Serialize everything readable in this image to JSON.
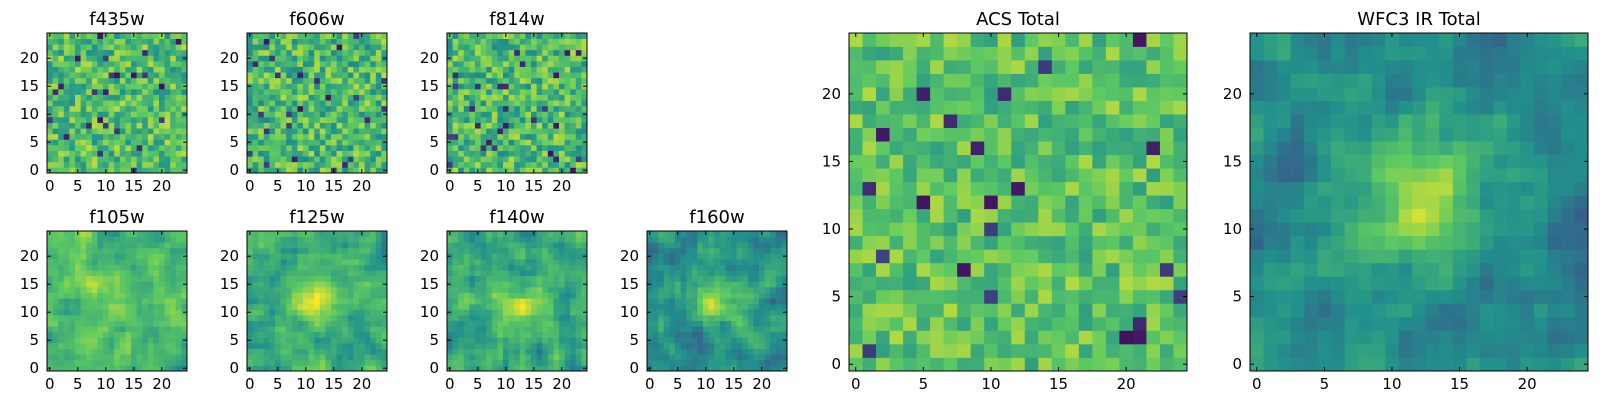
{
  "figure": {
    "colormap": "viridis",
    "colormap_stops": [
      "#440154",
      "#3b528b",
      "#21918c",
      "#5ec962",
      "#fde725"
    ],
    "frame_color": "#000000",
    "background": "#ffffff"
  },
  "chart_data": [
    {
      "id": "f435w",
      "type": "heatmap",
      "title": "f435w",
      "grid": [
        25,
        25
      ],
      "xlim": [
        -0.5,
        24.5
      ],
      "ylim": [
        -0.5,
        24.5
      ],
      "xticks": [
        "0",
        "5",
        "10",
        "15",
        "20"
      ],
      "yticks": [
        "0",
        "5",
        "10",
        "15",
        "20"
      ],
      "pattern": "noise",
      "mean": 0.7,
      "noise": 0.2,
      "seed": 11
    },
    {
      "id": "f606w",
      "type": "heatmap",
      "title": "f606w",
      "grid": [
        25,
        25
      ],
      "xlim": [
        -0.5,
        24.5
      ],
      "ylim": [
        -0.5,
        24.5
      ],
      "xticks": [
        "0",
        "5",
        "10",
        "15",
        "20"
      ],
      "yticks": [
        "0",
        "5",
        "10",
        "15",
        "20"
      ],
      "pattern": "noise",
      "mean": 0.68,
      "noise": 0.21,
      "seed": 23
    },
    {
      "id": "f814w",
      "type": "heatmap",
      "title": "f814w",
      "grid": [
        25,
        25
      ],
      "xlim": [
        -0.5,
        24.5
      ],
      "ylim": [
        -0.5,
        24.5
      ],
      "xticks": [
        "0",
        "5",
        "10",
        "15",
        "20"
      ],
      "yticks": [
        "0",
        "5",
        "10",
        "15",
        "20"
      ],
      "pattern": "noise",
      "mean": 0.68,
      "noise": 0.21,
      "seed": 37
    },
    {
      "id": "f105w",
      "type": "heatmap",
      "title": "f105w",
      "grid": [
        25,
        25
      ],
      "xlim": [
        -0.5,
        24.5
      ],
      "ylim": [
        -0.5,
        24.5
      ],
      "xticks": [
        "0",
        "5",
        "10",
        "15",
        "20"
      ],
      "yticks": [
        "0",
        "5",
        "10",
        "15",
        "20"
      ],
      "pattern": "smooth",
      "mean": 0.68,
      "noise": 0.13,
      "blob_center": [
        12,
        12
      ],
      "blob_strength": 0.12,
      "seed": 41
    },
    {
      "id": "f125w",
      "type": "heatmap",
      "title": "f125w",
      "grid": [
        25,
        25
      ],
      "xlim": [
        -0.5,
        24.5
      ],
      "ylim": [
        -0.5,
        24.5
      ],
      "xticks": [
        "0",
        "5",
        "10",
        "15",
        "20"
      ],
      "yticks": [
        "0",
        "5",
        "10",
        "15",
        "20"
      ],
      "pattern": "smooth",
      "mean": 0.62,
      "noise": 0.13,
      "blob_center": [
        12,
        12
      ],
      "blob_strength": 0.3,
      "seed": 53
    },
    {
      "id": "f140w",
      "type": "heatmap",
      "title": "f140w",
      "grid": [
        25,
        25
      ],
      "xlim": [
        -0.5,
        24.5
      ],
      "ylim": [
        -0.5,
        24.5
      ],
      "xticks": [
        "0",
        "5",
        "10",
        "15",
        "20"
      ],
      "yticks": [
        "0",
        "5",
        "10",
        "15",
        "20"
      ],
      "pattern": "smooth",
      "mean": 0.6,
      "noise": 0.15,
      "blob_center": [
        13,
        11
      ],
      "blob_strength": 0.22,
      "seed": 67
    },
    {
      "id": "f160w",
      "type": "heatmap",
      "title": "f160w",
      "grid": [
        25,
        25
      ],
      "xlim": [
        -0.5,
        24.5
      ],
      "ylim": [
        -0.5,
        24.5
      ],
      "xticks": [
        "0",
        "5",
        "10",
        "15",
        "20"
      ],
      "yticks": [
        "0",
        "5",
        "10",
        "15",
        "20"
      ],
      "pattern": "smooth",
      "mean": 0.5,
      "noise": 0.14,
      "blob_center": [
        12,
        12
      ],
      "blob_strength": 0.38,
      "seed": 79
    },
    {
      "id": "acs-total",
      "type": "heatmap",
      "title": "ACS Total",
      "grid": [
        25,
        25
      ],
      "xlim": [
        -0.5,
        24.5
      ],
      "ylim": [
        -0.5,
        24.5
      ],
      "xticks": [
        "0",
        "5",
        "10",
        "15",
        "20"
      ],
      "yticks": [
        "0",
        "5",
        "10",
        "15",
        "20"
      ],
      "pattern": "noise",
      "mean": 0.72,
      "noise": 0.16,
      "seed": 97
    },
    {
      "id": "wfc3-ir-total",
      "type": "heatmap",
      "title": "WFC3 IR Total",
      "grid": [
        25,
        25
      ],
      "xlim": [
        -0.5,
        24.5
      ],
      "ylim": [
        -0.5,
        24.5
      ],
      "xticks": [
        "0",
        "5",
        "10",
        "15",
        "20"
      ],
      "yticks": [
        "0",
        "5",
        "10",
        "15",
        "20"
      ],
      "pattern": "smooth",
      "mean": 0.48,
      "noise": 0.12,
      "blob_center": [
        12,
        12
      ],
      "blob_strength": 0.45,
      "seed": 113
    }
  ]
}
